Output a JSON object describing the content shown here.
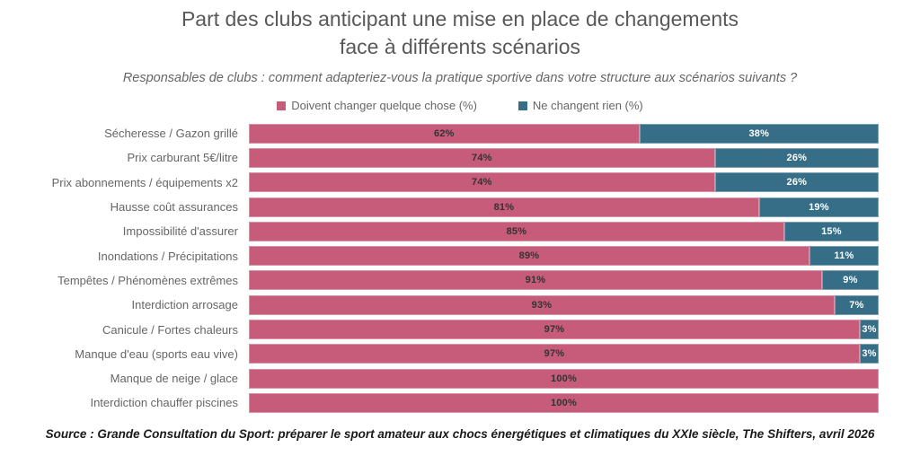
{
  "title": {
    "line1": "Part des clubs anticipant une mise en place de changements",
    "line2": "face à différents scénarios"
  },
  "subtitle": "Responsables de clubs : comment adapteriez-vous la pratique sportive dans votre structure aux scénarios suivants ?",
  "legend": [
    {
      "label": "Doivent changer quelque chose (%)",
      "color": "#c65b7a"
    },
    {
      "label": "Ne changent rien (%)",
      "color": "#366e88"
    }
  ],
  "colors": {
    "change": "#c65b7a",
    "no_change": "#366e88",
    "change_value_text": "#333333",
    "no_change_value_text": "#ffffff",
    "title_text": "#595959",
    "body_text": "#666666"
  },
  "chart_data": {
    "type": "bar",
    "orientation": "horizontal",
    "stacked": true,
    "title": "Part des clubs anticipant une mise en place de changements face à différents scénarios",
    "subtitle": "Responsables de clubs : comment adapteriez-vous la pratique sportive dans votre structure aux scénarios suivants ?",
    "value_label_format": "{value}%",
    "xlim": [
      0,
      100
    ],
    "grid": false,
    "legend_position": "top",
    "categories": [
      "Sécheresse / Gazon grillé",
      "Prix carburant 5€/litre",
      "Prix abonnements / équipements x2",
      "Hausse coût assurances",
      "Impossibilité d'assurer",
      "Inondations / Précipitations",
      "Tempêtes / Phénomènes extrêmes",
      "Interdiction arrosage",
      "Canicule / Fortes chaleurs",
      "Manque d'eau (sports eau vive)",
      "Manque de neige / glace",
      "Interdiction chauffer piscines"
    ],
    "series": [
      {
        "name": "Doivent changer quelque chose (%)",
        "color": "#c65b7a",
        "values": [
          62,
          74,
          74,
          81,
          85,
          89,
          91,
          93,
          97,
          97,
          100,
          100
        ]
      },
      {
        "name": "Ne changent rien (%)",
        "color": "#366e88",
        "values": [
          38,
          26,
          26,
          19,
          15,
          11,
          9,
          7,
          3,
          3,
          0,
          0
        ]
      }
    ]
  },
  "source": "Source : Grande Consultation du Sport: préparer le sport amateur aux chocs énergétiques et climatiques du XXIe siècle, The Shifters, avril 2026"
}
